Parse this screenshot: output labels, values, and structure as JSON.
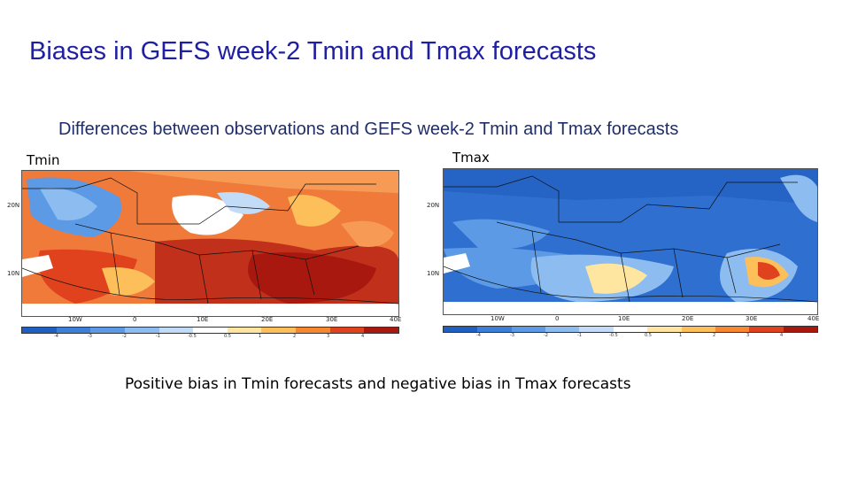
{
  "title": "Biases in GEFS week-2 Tmin and Tmax forecasts",
  "subtitle": "Differences between observations and GEFS week-2 Tmin and Tmax forecasts",
  "caption": "Positive bias in Tmin forecasts and negative bias in Tmax forecasts",
  "maps": [
    {
      "label": "Tmin",
      "lat_labels": [
        "20N",
        "10N"
      ],
      "lon_labels": [
        "10W",
        "0",
        "10E",
        "20E",
        "30E",
        "40E"
      ],
      "dominant_bias": "positive",
      "colorbar_ticks": [
        "-4",
        "-3",
        "-2",
        "-1",
        "-0.5",
        "0.5",
        "1",
        "2",
        "3",
        "4"
      ]
    },
    {
      "label": "Tmax",
      "lat_labels": [
        "20N",
        "10N"
      ],
      "lon_labels": [
        "10W",
        "0",
        "10E",
        "20E",
        "30E",
        "40E"
      ],
      "dominant_bias": "negative",
      "colorbar_ticks": [
        "-4",
        "-3",
        "-2",
        "-1",
        "-0.5",
        "0.5",
        "1",
        "2",
        "3",
        "4"
      ]
    }
  ],
  "colorbar_colors": [
    "#1f5fbf",
    "#3c7fd8",
    "#5c9ae6",
    "#8cbcf0",
    "#c2dcf7",
    "#ffffff",
    "#ffe6a0",
    "#fdbf5a",
    "#f7882f",
    "#e0421e",
    "#a8180e"
  ]
}
